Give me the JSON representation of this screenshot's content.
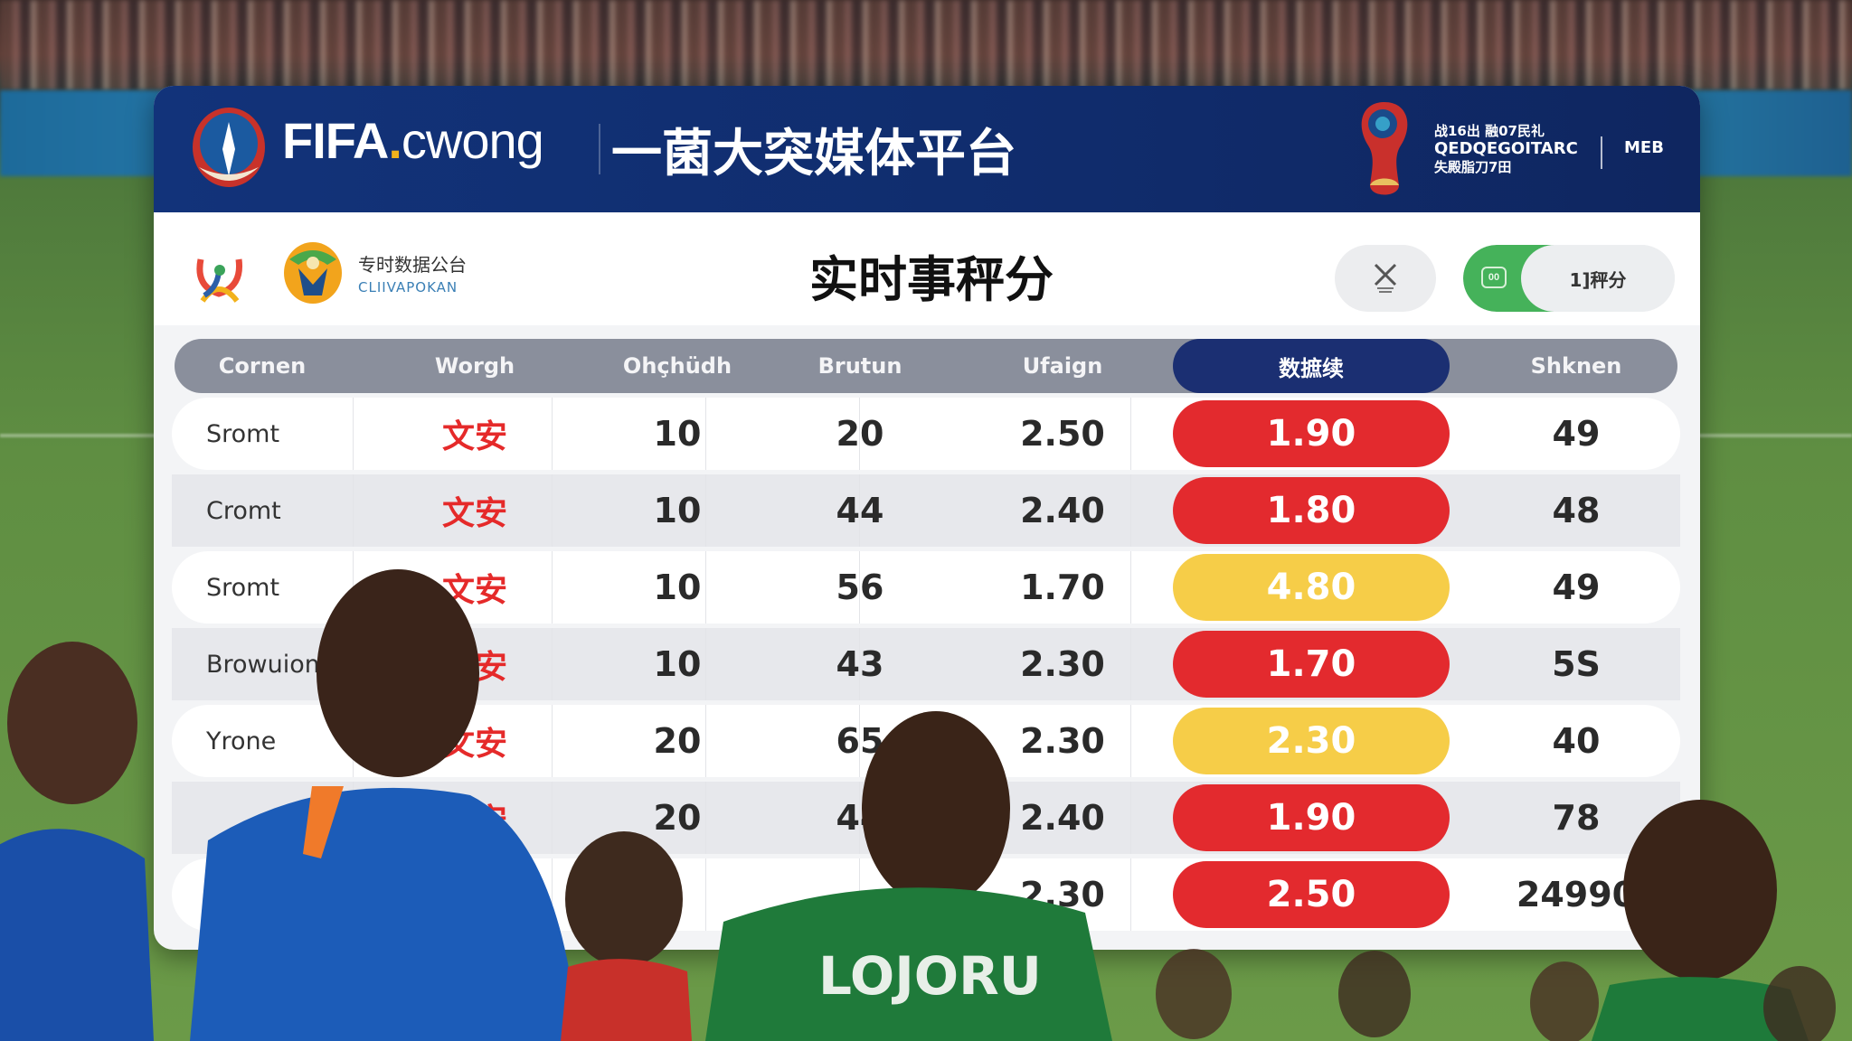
{
  "header": {
    "brand_main": "FIFA",
    "brand_dot": ".",
    "brand_suffix": "cwong",
    "platform_title": "一菌大突媒体平台",
    "wc_line1": "战16出 融07民礼",
    "wc_line2": "QEDQEGOITARC",
    "wc_line3": "失殿脂刀7田",
    "wc_right": "MEB"
  },
  "subheader": {
    "logo_text_cn": "专时数据公台",
    "logo_text_en": "CLIIVAPOKAN",
    "title": "实时事秤分",
    "toggle_on_label": "00",
    "toggle_label": "1]秤分"
  },
  "table": {
    "columns": [
      "Cornen",
      "Worgh",
      "Ohçhüdh",
      "Brutun",
      "Ufaign",
      "数摭续",
      "Shknen"
    ],
    "active_column": 5,
    "rows": [
      {
        "name": "Sromt",
        "cn": "文安",
        "c1": "10",
        "c2": "20",
        "c3": "2.50",
        "score": "1.90",
        "score_color": "red",
        "last": "49"
      },
      {
        "name": "Cromt",
        "cn": "文安",
        "c1": "10",
        "c2": "44",
        "c3": "2.40",
        "score": "1.80",
        "score_color": "red",
        "last": "48"
      },
      {
        "name": "Sromt",
        "cn": "文安",
        "c1": "10",
        "c2": "56",
        "c3": "1.70",
        "score": "4.80",
        "score_color": "yellow",
        "last": "49"
      },
      {
        "name": "Browuiom:",
        "cn": "文安",
        "c1": "10",
        "c2": "43",
        "c3": "2.30",
        "score": "1.70",
        "score_color": "red",
        "last": "5S"
      },
      {
        "name": "Yrone",
        "cn": "文安",
        "c1": "20",
        "c2": "65",
        "c3": "2.30",
        "score": "2.30",
        "score_color": "yellow",
        "last": "40"
      },
      {
        "name": "",
        "cn": "文安",
        "c1": "20",
        "c2": "44",
        "c3": "2.40",
        "score": "1.90",
        "score_color": "red",
        "last": "78"
      },
      {
        "name": "",
        "cn": "",
        "c1": "",
        "c2": "",
        "c3": "2.30",
        "score": "2.50",
        "score_color": "red",
        "last": "24990"
      }
    ]
  },
  "foreground": {
    "jersey_text": "LOJORU"
  },
  "colors": {
    "header_blue": "#12337a",
    "active_col": "#1b2f72",
    "red": "#e32a2e",
    "yellow": "#f6cd48",
    "green": "#45b25a",
    "red_text": "#e52a2a"
  }
}
